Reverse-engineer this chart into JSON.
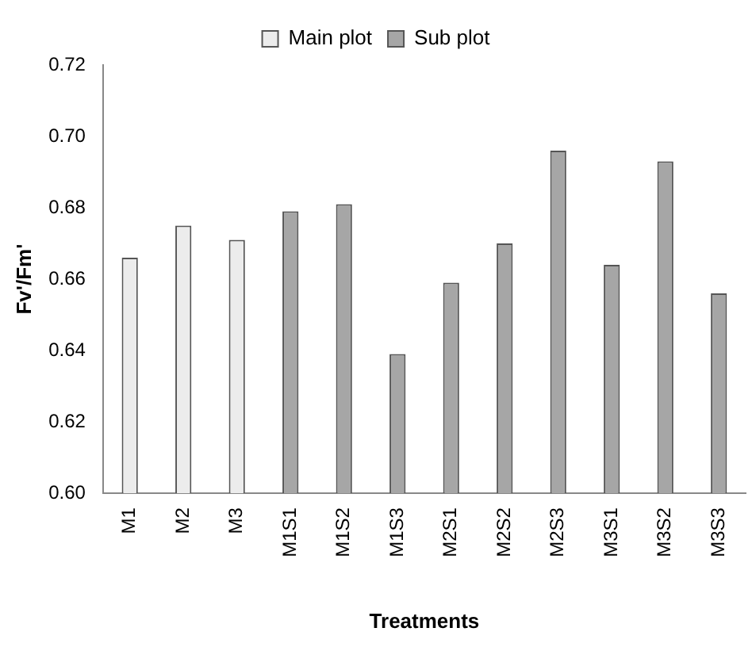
{
  "chart_data": {
    "type": "bar",
    "xlabel": "Treatments",
    "ylabel": "Fv'/Fm'",
    "categories": [
      "M1",
      "M2",
      "M3",
      "M1S1",
      "M1S2",
      "M1S3",
      "M2S1",
      "M2S2",
      "M2S3",
      "M3S1",
      "M3S2",
      "M3S3"
    ],
    "series": [
      {
        "name": "Main plot",
        "color": "#ececec",
        "values": [
          0.666,
          0.675,
          0.671,
          null,
          null,
          null,
          null,
          null,
          null,
          null,
          null,
          null
        ]
      },
      {
        "name": "Sub plot",
        "color": "#a6a6a6",
        "values": [
          null,
          null,
          null,
          0.679,
          0.681,
          0.639,
          0.659,
          0.67,
          0.696,
          0.664,
          0.693,
          0.656
        ]
      }
    ],
    "ylim": [
      0.6,
      0.72
    ],
    "yticks": [
      {
        "value": 0.6,
        "label": "0.60"
      },
      0.62,
      0.64,
      0.66,
      0.68,
      {
        "value": 0.7,
        "label": "0.70"
      },
      0.72
    ],
    "grid": false,
    "legend": "top"
  }
}
